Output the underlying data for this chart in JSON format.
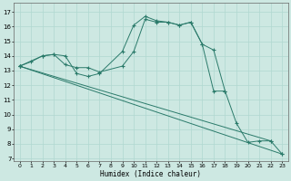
{
  "bg_color": "#cde8e2",
  "grid_color": "#b0d8d0",
  "line_color": "#2a7a6a",
  "xlabel": "Humidex (Indice chaleur)",
  "ylabel_ticks": [
    7,
    8,
    9,
    10,
    11,
    12,
    13,
    14,
    15,
    16,
    17
  ],
  "xlabel_ticks": [
    0,
    1,
    2,
    3,
    4,
    5,
    6,
    7,
    8,
    9,
    10,
    11,
    12,
    13,
    14,
    15,
    16,
    17,
    18,
    19,
    20,
    21,
    22,
    23
  ],
  "xlim": [
    -0.5,
    23.5
  ],
  "ylim": [
    6.8,
    17.6
  ],
  "series": [
    {
      "x": [
        0,
        1,
        2,
        3,
        4,
        5,
        6,
        7,
        9,
        10,
        11,
        12,
        13,
        14,
        15,
        16,
        17,
        18,
        19,
        20,
        21,
        22,
        23
      ],
      "y": [
        13.3,
        13.6,
        14.0,
        14.1,
        14.0,
        12.8,
        12.6,
        12.8,
        14.3,
        16.1,
        16.7,
        16.4,
        16.3,
        16.1,
        16.3,
        14.8,
        14.4,
        11.6,
        9.4,
        8.1,
        8.2,
        8.2,
        7.3
      ]
    },
    {
      "x": [
        0,
        2,
        3,
        4,
        5,
        6,
        7,
        9,
        10,
        11,
        12,
        13,
        14,
        15,
        16,
        17,
        18
      ],
      "y": [
        13.3,
        14.0,
        14.1,
        13.4,
        13.2,
        13.2,
        12.9,
        13.3,
        14.3,
        16.5,
        16.3,
        16.3,
        16.1,
        16.3,
        14.8,
        11.6,
        11.6
      ]
    },
    {
      "x": [
        0,
        23
      ],
      "y": [
        13.3,
        7.3
      ]
    },
    {
      "x": [
        0,
        22
      ],
      "y": [
        13.3,
        8.2
      ]
    }
  ]
}
